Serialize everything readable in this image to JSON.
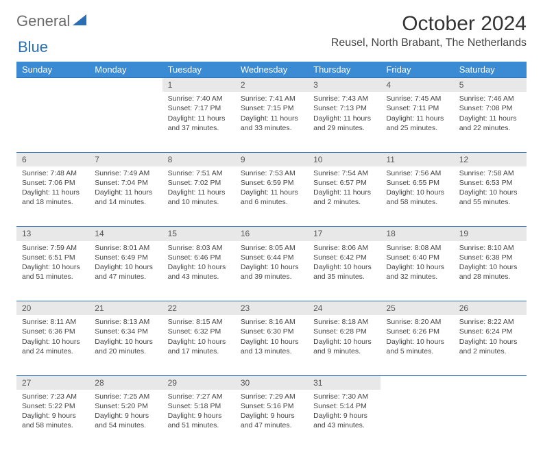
{
  "logo": {
    "text1": "General",
    "text2": "Blue"
  },
  "title": "October 2024",
  "location": "Reusel, North Brabant, The Netherlands",
  "colors": {
    "header_bg": "#3b8bd4",
    "border": "#2a6fb5",
    "daynum_bg": "#e8e8e8",
    "logo_gray": "#6a6a6a",
    "logo_blue": "#2a6fb5"
  },
  "weekdays": [
    "Sunday",
    "Monday",
    "Tuesday",
    "Wednesday",
    "Thursday",
    "Friday",
    "Saturday"
  ],
  "weeks": [
    [
      null,
      null,
      {
        "n": "1",
        "sunrise": "7:40 AM",
        "sunset": "7:17 PM",
        "daylight": "11 hours and 37 minutes."
      },
      {
        "n": "2",
        "sunrise": "7:41 AM",
        "sunset": "7:15 PM",
        "daylight": "11 hours and 33 minutes."
      },
      {
        "n": "3",
        "sunrise": "7:43 AM",
        "sunset": "7:13 PM",
        "daylight": "11 hours and 29 minutes."
      },
      {
        "n": "4",
        "sunrise": "7:45 AM",
        "sunset": "7:11 PM",
        "daylight": "11 hours and 25 minutes."
      },
      {
        "n": "5",
        "sunrise": "7:46 AM",
        "sunset": "7:08 PM",
        "daylight": "11 hours and 22 minutes."
      }
    ],
    [
      {
        "n": "6",
        "sunrise": "7:48 AM",
        "sunset": "7:06 PM",
        "daylight": "11 hours and 18 minutes."
      },
      {
        "n": "7",
        "sunrise": "7:49 AM",
        "sunset": "7:04 PM",
        "daylight": "11 hours and 14 minutes."
      },
      {
        "n": "8",
        "sunrise": "7:51 AM",
        "sunset": "7:02 PM",
        "daylight": "11 hours and 10 minutes."
      },
      {
        "n": "9",
        "sunrise": "7:53 AM",
        "sunset": "6:59 PM",
        "daylight": "11 hours and 6 minutes."
      },
      {
        "n": "10",
        "sunrise": "7:54 AM",
        "sunset": "6:57 PM",
        "daylight": "11 hours and 2 minutes."
      },
      {
        "n": "11",
        "sunrise": "7:56 AM",
        "sunset": "6:55 PM",
        "daylight": "10 hours and 58 minutes."
      },
      {
        "n": "12",
        "sunrise": "7:58 AM",
        "sunset": "6:53 PM",
        "daylight": "10 hours and 55 minutes."
      }
    ],
    [
      {
        "n": "13",
        "sunrise": "7:59 AM",
        "sunset": "6:51 PM",
        "daylight": "10 hours and 51 minutes."
      },
      {
        "n": "14",
        "sunrise": "8:01 AM",
        "sunset": "6:49 PM",
        "daylight": "10 hours and 47 minutes."
      },
      {
        "n": "15",
        "sunrise": "8:03 AM",
        "sunset": "6:46 PM",
        "daylight": "10 hours and 43 minutes."
      },
      {
        "n": "16",
        "sunrise": "8:05 AM",
        "sunset": "6:44 PM",
        "daylight": "10 hours and 39 minutes."
      },
      {
        "n": "17",
        "sunrise": "8:06 AM",
        "sunset": "6:42 PM",
        "daylight": "10 hours and 35 minutes."
      },
      {
        "n": "18",
        "sunrise": "8:08 AM",
        "sunset": "6:40 PM",
        "daylight": "10 hours and 32 minutes."
      },
      {
        "n": "19",
        "sunrise": "8:10 AM",
        "sunset": "6:38 PM",
        "daylight": "10 hours and 28 minutes."
      }
    ],
    [
      {
        "n": "20",
        "sunrise": "8:11 AM",
        "sunset": "6:36 PM",
        "daylight": "10 hours and 24 minutes."
      },
      {
        "n": "21",
        "sunrise": "8:13 AM",
        "sunset": "6:34 PM",
        "daylight": "10 hours and 20 minutes."
      },
      {
        "n": "22",
        "sunrise": "8:15 AM",
        "sunset": "6:32 PM",
        "daylight": "10 hours and 17 minutes."
      },
      {
        "n": "23",
        "sunrise": "8:16 AM",
        "sunset": "6:30 PM",
        "daylight": "10 hours and 13 minutes."
      },
      {
        "n": "24",
        "sunrise": "8:18 AM",
        "sunset": "6:28 PM",
        "daylight": "10 hours and 9 minutes."
      },
      {
        "n": "25",
        "sunrise": "8:20 AM",
        "sunset": "6:26 PM",
        "daylight": "10 hours and 5 minutes."
      },
      {
        "n": "26",
        "sunrise": "8:22 AM",
        "sunset": "6:24 PM",
        "daylight": "10 hours and 2 minutes."
      }
    ],
    [
      {
        "n": "27",
        "sunrise": "7:23 AM",
        "sunset": "5:22 PM",
        "daylight": "9 hours and 58 minutes."
      },
      {
        "n": "28",
        "sunrise": "7:25 AM",
        "sunset": "5:20 PM",
        "daylight": "9 hours and 54 minutes."
      },
      {
        "n": "29",
        "sunrise": "7:27 AM",
        "sunset": "5:18 PM",
        "daylight": "9 hours and 51 minutes."
      },
      {
        "n": "30",
        "sunrise": "7:29 AM",
        "sunset": "5:16 PM",
        "daylight": "9 hours and 47 minutes."
      },
      {
        "n": "31",
        "sunrise": "7:30 AM",
        "sunset": "5:14 PM",
        "daylight": "9 hours and 43 minutes."
      },
      null,
      null
    ]
  ],
  "labels": {
    "sunrise": "Sunrise:",
    "sunset": "Sunset:",
    "daylight": "Daylight:"
  }
}
